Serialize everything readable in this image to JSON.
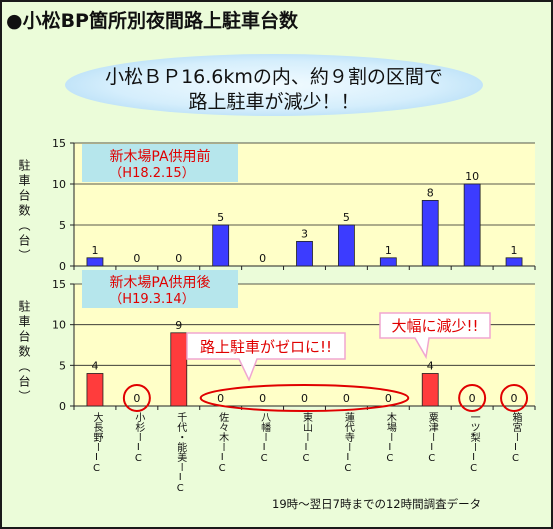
{
  "title": "●小松BP箇所別夜間路上駐車台数",
  "headline": {
    "line1": "小松ＢＰ16.6kmの内、約９割の区間で",
    "line2": "路上駐車が減少！！"
  },
  "footnote": "19時～翌日7時までの12時間調査データ",
  "colors": {
    "before": "#3c3cff",
    "after": "#ff3c3c",
    "highlight": "#e00000",
    "plot_bg": "#ffffc8"
  },
  "chart_data": [
    {
      "type": "bar",
      "title": "新木場PA供用前（H18.2.15）",
      "title_line1": "新木場PA供用前",
      "title_line2": "（H18.2.15）",
      "ylabel": "駐車台数（台）",
      "ylim": [
        0,
        15
      ],
      "yticks": [
        0,
        5,
        10,
        15
      ],
      "grid": true,
      "categories": [
        "大長野IC",
        "小杉IC",
        "千代・能美IC",
        "佐々木IC",
        "八幡IC",
        "東山IC",
        "蓮代寺IC",
        "木場IC",
        "粟津IC",
        "一ツ梨IC",
        "箱宮IC"
      ],
      "values": [
        1,
        0,
        0,
        5,
        0,
        3,
        5,
        1,
        8,
        10,
        1
      ]
    },
    {
      "type": "bar",
      "title": "新木場PA供用後（H19.3.14）",
      "title_line1": "新木場PA供用後",
      "title_line2": "（H19.3.14）",
      "ylabel": "駐車台数（台）",
      "ylim": [
        0,
        15
      ],
      "yticks": [
        0,
        5,
        10,
        15
      ],
      "grid": true,
      "categories": [
        "大長野IC",
        "小杉IC",
        "千代・能美IC",
        "佐々木IC",
        "八幡IC",
        "東山IC",
        "蓮代寺IC",
        "木場IC",
        "粟津IC",
        "一ツ梨IC",
        "箱宮IC"
      ],
      "values": [
        4,
        0,
        9,
        0,
        0,
        0,
        0,
        0,
        4,
        0,
        0
      ],
      "annotations": [
        "路上駐車がゼロに!!",
        "大幅に減少!!"
      ]
    }
  ],
  "category_labels": [
    "大長野ーIC",
    "小杉ーIC",
    "千代・能美ーIC",
    "佐々木ーIC",
    "八幡ーIC",
    "東山ーIC",
    "蓮代寺ーIC",
    "木場ーIC",
    "粟津ーIC",
    "一ツ梨ーIC",
    "箱宮ーIC"
  ]
}
